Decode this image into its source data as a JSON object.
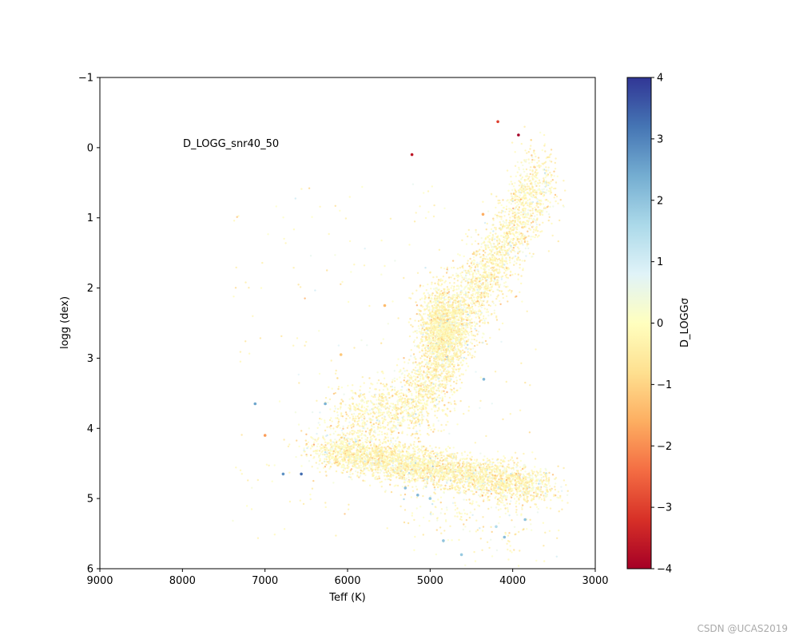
{
  "chart_data": {
    "type": "scatter",
    "xlabel": "Teff (K)",
    "ylabel": "logg (dex)",
    "xlim": [
      9000,
      3000
    ],
    "ylim": [
      6,
      -1
    ],
    "xticks": [
      "9000",
      "8000",
      "7000",
      "6000",
      "5000",
      "4000",
      "3000"
    ],
    "yticks": [
      "−1",
      "0",
      "1",
      "2",
      "3",
      "4",
      "5",
      "6"
    ],
    "annotation": "D_LOGG_snr40_50",
    "colorbar": {
      "label": "D_LOGGσ",
      "range": [
        -4,
        4
      ],
      "colormap": "RdYlBu",
      "ticks": [
        "−4",
        "−3",
        "−2",
        "−1",
        "0",
        "1",
        "2",
        "3",
        "4"
      ]
    },
    "highlight_points": [
      {
        "teff": 5220,
        "logg": 0.1,
        "d": -3.6
      },
      {
        "teff": 4180,
        "logg": -0.37,
        "d": -3.0
      },
      {
        "teff": 3930,
        "logg": -0.18,
        "d": -4.0
      },
      {
        "teff": 5550,
        "logg": 2.25,
        "d": -1.4
      },
      {
        "teff": 4360,
        "logg": 0.95,
        "d": -1.6
      },
      {
        "teff": 6080,
        "logg": 2.95,
        "d": -1.2
      },
      {
        "teff": 7000,
        "logg": 4.1,
        "d": -1.8
      },
      {
        "teff": 7120,
        "logg": 3.65,
        "d": 2.5
      },
      {
        "teff": 6270,
        "logg": 3.65,
        "d": 2.3
      },
      {
        "teff": 6780,
        "logg": 4.65,
        "d": 2.8
      },
      {
        "teff": 6560,
        "logg": 4.65,
        "d": 3.3
      },
      {
        "teff": 4620,
        "logg": 5.8,
        "d": 1.9
      },
      {
        "teff": 4840,
        "logg": 5.6,
        "d": 2.0
      },
      {
        "teff": 4100,
        "logg": 5.55,
        "d": 2.1
      },
      {
        "teff": 4350,
        "logg": 3.3,
        "d": 2.2
      },
      {
        "teff": 5150,
        "logg": 4.95,
        "d": 2.2
      },
      {
        "teff": 5300,
        "logg": 4.85,
        "d": 2.1
      },
      {
        "teff": 3850,
        "logg": 5.3,
        "d": 2.0
      },
      {
        "teff": 5000,
        "logg": 5.0,
        "d": 1.9
      },
      {
        "teff": 4200,
        "logg": 5.4,
        "d": 1.5
      }
    ],
    "density_regions": [
      {
        "name": "red-giant-branch",
        "count": 2600,
        "x_start": 5150,
        "y_start": 3.5,
        "x_end": 3600,
        "y_end": 0.35,
        "spread_x": 120,
        "spread_y": 0.28
      },
      {
        "name": "red-clump",
        "count": 1300,
        "center": [
          4850,
          2.55
        ],
        "spread": [
          140,
          0.3
        ]
      },
      {
        "name": "main-sequence",
        "count": 3400,
        "x_start": 6250,
        "y_start": 4.3,
        "x_end": 3650,
        "y_end": 4.85,
        "spread_x": 180,
        "spread_y": 0.13
      },
      {
        "name": "subgiants",
        "count": 900,
        "x_start": 6000,
        "y_start": 3.9,
        "x_end": 5050,
        "y_end": 3.6,
        "spread_x": 250,
        "spread_y": 0.22
      },
      {
        "name": "low-mass-dwarfs",
        "count": 180,
        "x_start": 5200,
        "y_start": 5.0,
        "x_end": 3800,
        "y_end": 5.5,
        "spread_x": 200,
        "spread_y": 0.25
      },
      {
        "name": "sparse-field",
        "count": 250,
        "x_range": [
          7400,
          3500
        ],
        "y_range": [
          0.5,
          5.6
        ]
      }
    ]
  },
  "watermark": "CSDN @UCAS2019"
}
